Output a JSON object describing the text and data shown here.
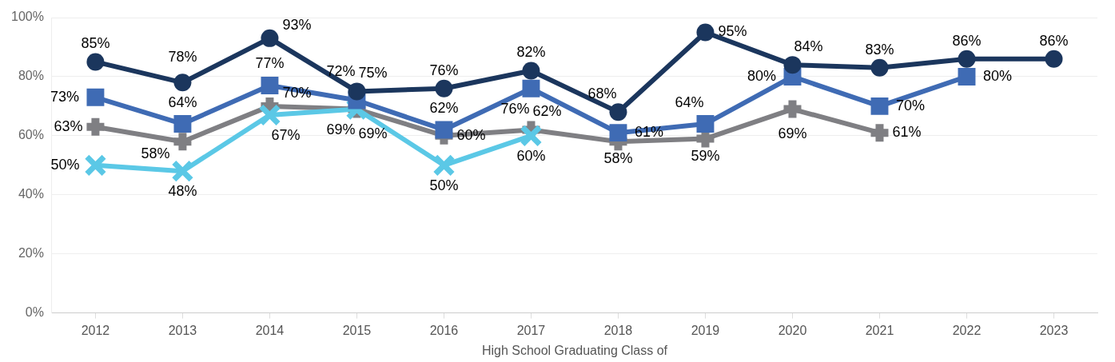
{
  "chart_data": {
    "type": "line",
    "xlabel": "High School Graduating Class of",
    "categories": [
      "2012",
      "2013",
      "2014",
      "2015",
      "2016",
      "2017",
      "2018",
      "2019",
      "2020",
      "2021",
      "2022",
      "2023"
    ],
    "ylim": [
      0,
      100
    ],
    "yticks": [
      {
        "value": 0,
        "label": "0%"
      },
      {
        "value": 20,
        "label": "20%"
      },
      {
        "value": 40,
        "label": "40%"
      },
      {
        "value": 60,
        "label": "60%"
      },
      {
        "value": 80,
        "label": "80%"
      },
      {
        "value": 100,
        "label": "100%"
      }
    ],
    "grid": "y",
    "line_style": "solid",
    "series": [
      {
        "color": "#1b365d",
        "marker": "circle",
        "values": [
          85,
          78,
          93,
          75,
          76,
          82,
          68,
          95,
          84,
          83,
          86,
          86
        ],
        "value_labels": [
          "85%",
          "78%",
          "93%",
          "75%",
          "76%",
          "82%",
          "68%",
          "95%",
          "84%",
          "83%",
          "86%",
          "86%"
        ]
      },
      {
        "color": "#3f6bb4",
        "marker": "square",
        "values": [
          73,
          64,
          77,
          72,
          62,
          76,
          61,
          64,
          80,
          70,
          80,
          null
        ],
        "value_labels": [
          "73%",
          "64%",
          "77%",
          "72%",
          "62%",
          "76%",
          "61%",
          "64%",
          "80%",
          "70%",
          "80%",
          null
        ]
      },
      {
        "color": "#5bc8e6",
        "marker": "x",
        "values": [
          50,
          48,
          67,
          69,
          50,
          60,
          null,
          null,
          null,
          null,
          null,
          null
        ],
        "value_labels": [
          "50%",
          "48%",
          "67%",
          "69%",
          "50%",
          "60%",
          null,
          null,
          null,
          null,
          null,
          null
        ]
      },
      {
        "color": "#7f7f83",
        "marker": "cross",
        "values": [
          63,
          58,
          70,
          69,
          60,
          62,
          58,
          59,
          69,
          61,
          null,
          null
        ],
        "value_labels": [
          "63%",
          "58%",
          "70%",
          "69%",
          "60%",
          "62%",
          "58%",
          "59%",
          "69%",
          "61%",
          null,
          null
        ]
      }
    ]
  }
}
